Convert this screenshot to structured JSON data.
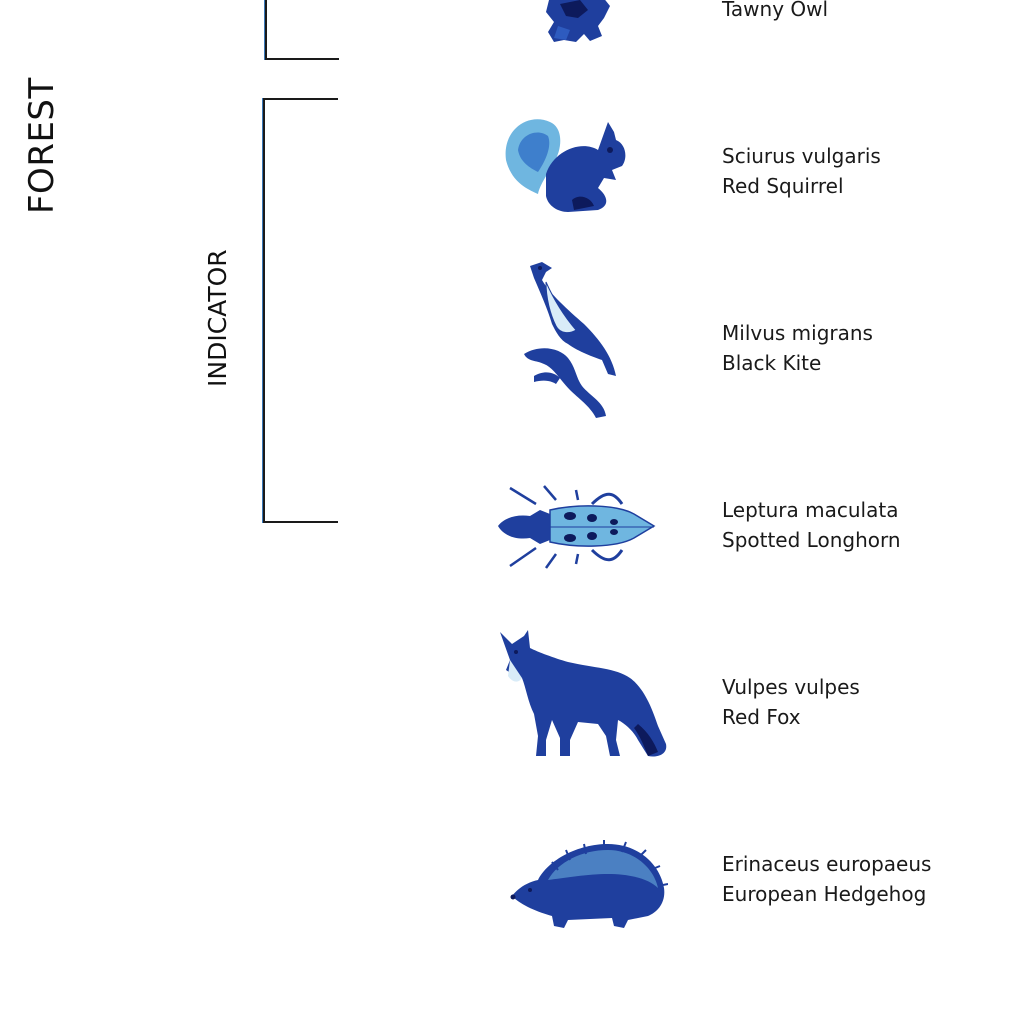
{
  "labels": {
    "forest": "FOREST",
    "indicator": "INDICATOR"
  },
  "colors": {
    "accent_blue": "#1f3f9e",
    "light_blue": "#6fb6e0",
    "dark_navy": "#0d1a5c",
    "line": "#1a1a1a"
  },
  "species": [
    {
      "scientific": "",
      "common": "Tawny Owl",
      "icon": "tawny-owl-icon"
    },
    {
      "scientific": "Sciurus vulgaris",
      "common": "Red Squirrel",
      "icon": "red-squirrel-icon"
    },
    {
      "scientific": "Milvus migrans",
      "common": "Black Kite",
      "icon": "black-kite-icon"
    },
    {
      "scientific": "Leptura maculata",
      "common": "Spotted Longhorn",
      "icon": "longhorn-beetle-icon"
    },
    {
      "scientific": "Vulpes vulpes",
      "common": "Red Fox",
      "icon": "red-fox-icon"
    },
    {
      "scientific": "Erinaceus europaeus",
      "common": "European Hedgehog",
      "icon": "hedgehog-icon"
    }
  ]
}
